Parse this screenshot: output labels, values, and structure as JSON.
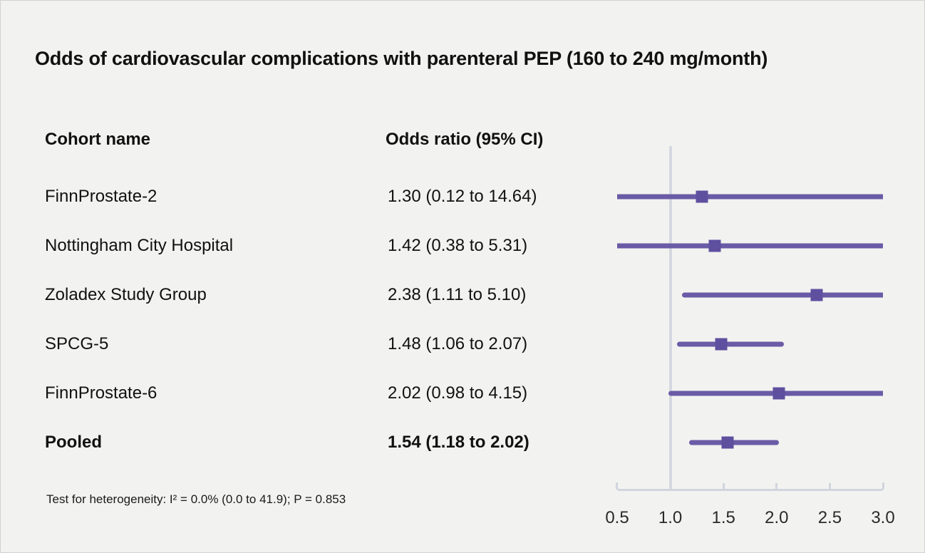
{
  "title": "Odds of cardiovascular complications with parenteral PEP (160 to 240 mg/month)",
  "columns": {
    "cohort": "Cohort name",
    "odds": "Odds ratio (95% CI)"
  },
  "footnote": "Test for heterogeneity: I² = 0.0% (0.0 to 41.9); P = 0.853",
  "chart_data": {
    "type": "forest",
    "title": "Odds of cardiovascular complications with parenteral PEP (160 to 240 mg/month)",
    "rows": [
      {
        "label": "FinnProstate-2",
        "or": 1.3,
        "ci_low": 0.12,
        "ci_high": 14.64,
        "or_text": "1.30 (0.12 to 14.64)",
        "emphasis": false
      },
      {
        "label": "Nottingham City Hospital",
        "or": 1.42,
        "ci_low": 0.38,
        "ci_high": 5.31,
        "or_text": "1.42 (0.38 to 5.31)",
        "emphasis": false
      },
      {
        "label": "Zoladex Study Group",
        "or": 2.38,
        "ci_low": 1.11,
        "ci_high": 5.1,
        "or_text": "2.38 (1.11 to 5.10)",
        "emphasis": false
      },
      {
        "label": "SPCG-5",
        "or": 1.48,
        "ci_low": 1.06,
        "ci_high": 2.07,
        "or_text": "1.48 (1.06 to 2.07)",
        "emphasis": false
      },
      {
        "label": "FinnProstate-6",
        "or": 2.02,
        "ci_low": 0.98,
        "ci_high": 4.15,
        "or_text": "2.02 (0.98 to 4.15)",
        "emphasis": false
      },
      {
        "label": "Pooled",
        "or": 1.54,
        "ci_low": 1.18,
        "ci_high": 2.02,
        "or_text": "1.54 (1.18 to 2.02)",
        "emphasis": true
      }
    ],
    "axis": {
      "min": 0.5,
      "max": 3.0,
      "ticks": [
        0.5,
        1.0,
        1.5,
        2.0,
        2.5,
        3.0
      ],
      "tick_labels": [
        "0.5",
        "1.0",
        "1.5",
        "2.0",
        "2.5",
        "3.0"
      ],
      "reference_line": 1.0,
      "scale": "linear",
      "clipped_to_axis_range": true
    },
    "legend": null,
    "grid": false
  },
  "colors": {
    "background": "#f2f2f0",
    "text": "#111111",
    "ci_line": "#6a5ba6",
    "marker": "#5e4f9f",
    "axis": "#d1d5de",
    "reference_line": "#d5d8e2"
  }
}
